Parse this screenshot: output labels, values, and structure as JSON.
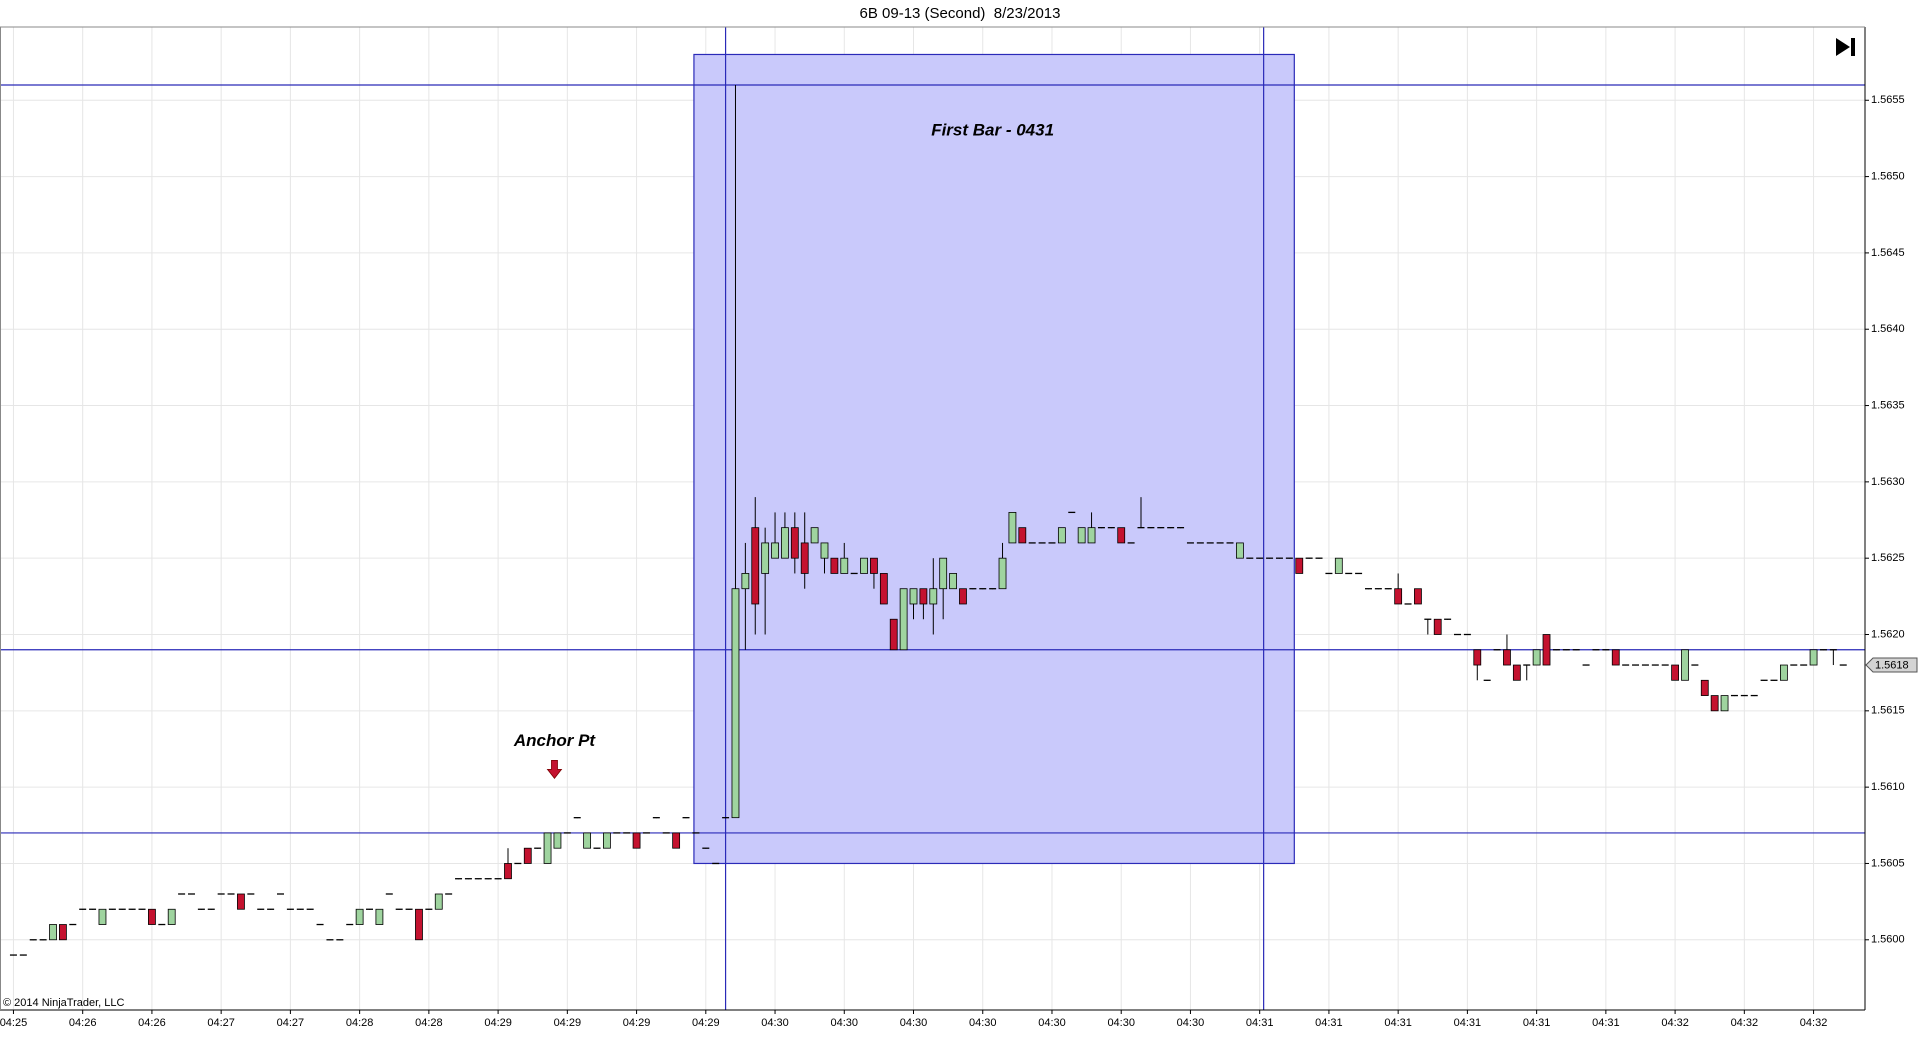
{
  "chart_data": {
    "type": "candlestick",
    "title": "6B 09-13 (Second)  8/23/2013",
    "copyright": "© 2014 NinjaTrader, LLC",
    "categories": [
      "04:25",
      null,
      null,
      null,
      null,
      null,
      null,
      "04:26",
      null,
      null,
      null,
      null,
      null,
      null,
      "04:26",
      null,
      null,
      null,
      null,
      null,
      null,
      "04:27",
      null,
      null,
      null,
      null,
      null,
      null,
      "04:27",
      null,
      null,
      null,
      null,
      null,
      null,
      "04:28",
      null,
      null,
      null,
      null,
      null,
      null,
      "04:28",
      null,
      null,
      null,
      null,
      null,
      null,
      "04:29",
      null,
      null,
      null,
      null,
      null,
      null,
      "04:29",
      null,
      null,
      null,
      null,
      null,
      null,
      "04:29",
      null,
      null,
      null,
      null,
      null,
      null,
      "04:29",
      null,
      null,
      null,
      null,
      null,
      null,
      "04:30",
      null,
      null,
      null,
      null,
      null,
      null,
      "04:30",
      null,
      null,
      null,
      null,
      null,
      null,
      "04:30",
      null,
      null,
      null,
      null,
      null,
      null,
      "04:30",
      null,
      null,
      null,
      null,
      null,
      null,
      "04:30",
      null,
      null,
      null,
      null,
      null,
      null,
      "04:30",
      null,
      null,
      null,
      null,
      null,
      null,
      "04:30",
      null,
      null,
      null,
      null,
      null,
      null,
      "04:31",
      null,
      null,
      null,
      null,
      null,
      null,
      "04:31",
      null,
      null,
      null,
      null,
      null,
      null,
      "04:31",
      null,
      null,
      null,
      null,
      null,
      null,
      "04:31",
      null,
      null,
      null,
      null,
      null,
      null,
      "04:31",
      null,
      null,
      null,
      null,
      null,
      null,
      "04:31",
      null,
      null,
      null,
      null,
      null,
      null,
      "04:32",
      null,
      null,
      null,
      null,
      null,
      null,
      "04:32",
      null,
      null,
      null,
      null,
      null,
      null,
      "04:32",
      null,
      null,
      null
    ],
    "open": [
      1.5599,
      1.5599,
      1.56,
      1.56,
      1.56,
      1.5601,
      1.5601,
      1.5602,
      1.5602,
      1.5601,
      1.5602,
      1.5602,
      1.5602,
      1.5602,
      1.5602,
      1.5601,
      1.5601,
      1.5603,
      1.5603,
      1.5602,
      1.5602,
      1.5603,
      1.5603,
      1.5603,
      1.5603,
      1.5602,
      1.5602,
      1.5603,
      1.5602,
      1.5602,
      1.5602,
      1.5601,
      1.56,
      1.56,
      1.5601,
      1.5601,
      1.5602,
      1.5601,
      1.5603,
      1.5602,
      1.5602,
      1.5602,
      1.5602,
      1.5602,
      1.5603,
      1.5604,
      1.5604,
      1.5604,
      1.5604,
      1.5604,
      1.5605,
      1.5605,
      1.5606,
      1.5606,
      1.5605,
      1.5606,
      1.5607,
      1.5608,
      1.5606,
      1.5606,
      1.5606,
      1.5607,
      1.5607,
      1.5607,
      1.5607,
      1.5608,
      1.5607,
      1.5607,
      1.5608,
      1.5607,
      1.5606,
      1.5605,
      1.5608,
      1.5608,
      1.5623,
      1.5627,
      1.5624,
      1.5625,
      1.5625,
      1.5627,
      1.5626,
      1.5626,
      1.5625,
      1.5625,
      1.5624,
      1.5624,
      1.5624,
      1.5625,
      1.5624,
      1.5621,
      1.5619,
      1.5622,
      1.5623,
      1.5622,
      1.5623,
      1.5623,
      1.5623,
      1.5623,
      1.5623,
      1.5623,
      1.5623,
      1.5626,
      1.5627,
      1.5626,
      1.5626,
      1.5626,
      1.5626,
      1.5628,
      1.5626,
      1.5626,
      1.5627,
      1.5627,
      1.5627,
      1.5626,
      1.5627,
      1.5627,
      1.5627,
      1.5627,
      1.5627,
      1.5626,
      1.5626,
      1.5626,
      1.5626,
      1.5626,
      1.5625,
      1.5625,
      1.5625,
      1.5625,
      1.5625,
      1.5625,
      1.5625,
      1.5625,
      1.5625,
      1.5624,
      1.5624,
      1.5624,
      1.5624,
      1.5623,
      1.5623,
      1.5623,
      1.5623,
      1.5622,
      1.5623,
      1.5621,
      1.5621,
      1.5621,
      1.562,
      1.562,
      1.5619,
      1.5617,
      1.5619,
      1.5619,
      1.5618,
      1.5618,
      1.5618,
      1.562,
      1.5619,
      1.5619,
      1.5619,
      1.5618,
      1.5619,
      1.5619,
      1.5619,
      1.5618,
      1.5618,
      1.5618,
      1.5618,
      1.5618,
      1.5618,
      1.5617,
      1.5618,
      1.5617,
      1.5616,
      1.5615,
      1.5616,
      1.5616,
      1.5616,
      1.5617,
      1.5617,
      1.5617,
      1.5618,
      1.5618,
      1.5618,
      1.5619,
      1.5619,
      1.5618
    ],
    "high": [
      1.5599,
      1.5599,
      1.56,
      1.56,
      1.5601,
      1.5601,
      1.5601,
      1.5602,
      1.5602,
      1.5602,
      1.5602,
      1.5602,
      1.5602,
      1.5602,
      1.5602,
      1.5601,
      1.5602,
      1.5603,
      1.5603,
      1.5602,
      1.5602,
      1.5603,
      1.5603,
      1.5603,
      1.5603,
      1.5602,
      1.5602,
      1.5603,
      1.5602,
      1.5602,
      1.5602,
      1.5601,
      1.56,
      1.56,
      1.5601,
      1.5602,
      1.5602,
      1.5602,
      1.5603,
      1.5602,
      1.5602,
      1.5602,
      1.5602,
      1.5603,
      1.5603,
      1.5604,
      1.5604,
      1.5604,
      1.5604,
      1.5604,
      1.5606,
      1.5605,
      1.5606,
      1.5606,
      1.5607,
      1.5607,
      1.5607,
      1.5608,
      1.5607,
      1.5606,
      1.5607,
      1.5607,
      1.5607,
      1.5607,
      1.5607,
      1.5608,
      1.5607,
      1.5607,
      1.5608,
      1.5607,
      1.5606,
      1.5605,
      1.5608,
      1.5656,
      1.5626,
      1.5629,
      1.5627,
      1.5628,
      1.5628,
      1.5628,
      1.5628,
      1.5627,
      1.5626,
      1.5625,
      1.5626,
      1.5624,
      1.5625,
      1.5625,
      1.5624,
      1.5621,
      1.5623,
      1.5623,
      1.5623,
      1.5625,
      1.5625,
      1.5624,
      1.5623,
      1.5623,
      1.5623,
      1.5623,
      1.5626,
      1.5628,
      1.5627,
      1.5626,
      1.5626,
      1.5626,
      1.5627,
      1.5628,
      1.5627,
      1.5628,
      1.5627,
      1.5627,
      1.5627,
      1.5626,
      1.5629,
      1.5627,
      1.5627,
      1.5627,
      1.5627,
      1.5626,
      1.5626,
      1.5626,
      1.5626,
      1.5626,
      1.5626,
      1.5625,
      1.5625,
      1.5625,
      1.5625,
      1.5625,
      1.5625,
      1.5625,
      1.5625,
      1.5624,
      1.5625,
      1.5624,
      1.5624,
      1.5623,
      1.5623,
      1.5623,
      1.5624,
      1.5622,
      1.5623,
      1.5621,
      1.5621,
      1.5621,
      1.562,
      1.562,
      1.5619,
      1.5617,
      1.5619,
      1.562,
      1.5618,
      1.5618,
      1.5619,
      1.562,
      1.5619,
      1.5619,
      1.5619,
      1.5618,
      1.5619,
      1.5619,
      1.5619,
      1.5618,
      1.5618,
      1.5618,
      1.5618,
      1.5618,
      1.5618,
      1.5619,
      1.5618,
      1.5617,
      1.5616,
      1.5616,
      1.5616,
      1.5616,
      1.5616,
      1.5617,
      1.5617,
      1.5618,
      1.5618,
      1.5618,
      1.5619,
      1.5619,
      1.5619,
      1.5618
    ],
    "low": [
      1.5599,
      1.5599,
      1.56,
      1.56,
      1.56,
      1.56,
      1.5601,
      1.5602,
      1.5602,
      1.5601,
      1.5602,
      1.5602,
      1.5602,
      1.5602,
      1.5601,
      1.5601,
      1.5601,
      1.5603,
      1.5603,
      1.5602,
      1.5602,
      1.5603,
      1.5603,
      1.5602,
      1.5603,
      1.5602,
      1.5602,
      1.5603,
      1.5602,
      1.5602,
      1.5602,
      1.5601,
      1.56,
      1.56,
      1.5601,
      1.5601,
      1.5602,
      1.5601,
      1.5603,
      1.5602,
      1.5602,
      1.56,
      1.5602,
      1.5602,
      1.5603,
      1.5604,
      1.5604,
      1.5604,
      1.5604,
      1.5604,
      1.5604,
      1.5605,
      1.5605,
      1.5606,
      1.5605,
      1.5606,
      1.5607,
      1.5608,
      1.5606,
      1.5606,
      1.5606,
      1.5607,
      1.5607,
      1.5606,
      1.5607,
      1.5608,
      1.5607,
      1.5606,
      1.5608,
      1.5607,
      1.5606,
      1.5605,
      1.5608,
      1.5608,
      1.5619,
      1.562,
      1.562,
      1.5625,
      1.5625,
      1.5624,
      1.5623,
      1.5626,
      1.5624,
      1.5624,
      1.5624,
      1.5624,
      1.5624,
      1.5623,
      1.5622,
      1.5619,
      1.5619,
      1.5621,
      1.5621,
      1.562,
      1.5621,
      1.5623,
      1.5622,
      1.5623,
      1.5623,
      1.5623,
      1.5623,
      1.5626,
      1.5626,
      1.5626,
      1.5626,
      1.5626,
      1.5626,
      1.5628,
      1.5626,
      1.5626,
      1.5627,
      1.5627,
      1.5626,
      1.5626,
      1.5627,
      1.5627,
      1.5627,
      1.5627,
      1.5627,
      1.5626,
      1.5626,
      1.5626,
      1.5626,
      1.5626,
      1.5625,
      1.5625,
      1.5625,
      1.5625,
      1.5625,
      1.5625,
      1.5624,
      1.5625,
      1.5625,
      1.5624,
      1.5624,
      1.5624,
      1.5624,
      1.5623,
      1.5623,
      1.5623,
      1.5622,
      1.5622,
      1.5622,
      1.562,
      1.562,
      1.5621,
      1.562,
      1.562,
      1.5617,
      1.5617,
      1.5619,
      1.5618,
      1.5617,
      1.5617,
      1.5618,
      1.5618,
      1.5619,
      1.5619,
      1.5619,
      1.5618,
      1.5619,
      1.5619,
      1.5618,
      1.5618,
      1.5618,
      1.5618,
      1.5618,
      1.5618,
      1.5617,
      1.5617,
      1.5618,
      1.5616,
      1.5615,
      1.5615,
      1.5616,
      1.5616,
      1.5616,
      1.5617,
      1.5617,
      1.5617,
      1.5618,
      1.5618,
      1.5618,
      1.5619,
      1.5618,
      1.5618
    ],
    "close": [
      1.5599,
      1.5599,
      1.56,
      1.56,
      1.5601,
      1.56,
      1.5601,
      1.5602,
      1.5602,
      1.5602,
      1.5602,
      1.5602,
      1.5602,
      1.5602,
      1.5601,
      1.5601,
      1.5602,
      1.5603,
      1.5603,
      1.5602,
      1.5602,
      1.5603,
      1.5603,
      1.5602,
      1.5603,
      1.5602,
      1.5602,
      1.5603,
      1.5602,
      1.5602,
      1.5602,
      1.5601,
      1.56,
      1.56,
      1.5601,
      1.5602,
      1.5602,
      1.5602,
      1.5603,
      1.5602,
      1.5602,
      1.56,
      1.5602,
      1.5603,
      1.5603,
      1.5604,
      1.5604,
      1.5604,
      1.5604,
      1.5604,
      1.5604,
      1.5605,
      1.5605,
      1.5606,
      1.5607,
      1.5607,
      1.5607,
      1.5608,
      1.5607,
      1.5606,
      1.5607,
      1.5607,
      1.5607,
      1.5606,
      1.5607,
      1.5608,
      1.5607,
      1.5606,
      1.5608,
      1.5607,
      1.5606,
      1.5605,
      1.5608,
      1.5623,
      1.5624,
      1.5622,
      1.5626,
      1.5626,
      1.5627,
      1.5625,
      1.5624,
      1.5627,
      1.5626,
      1.5624,
      1.5625,
      1.5624,
      1.5625,
      1.5624,
      1.5622,
      1.5619,
      1.5623,
      1.5623,
      1.5622,
      1.5623,
      1.5625,
      1.5624,
      1.5622,
      1.5623,
      1.5623,
      1.5623,
      1.5625,
      1.5628,
      1.5626,
      1.5626,
      1.5626,
      1.5626,
      1.5627,
      1.5628,
      1.5627,
      1.5627,
      1.5627,
      1.5627,
      1.5626,
      1.5626,
      1.5627,
      1.5627,
      1.5627,
      1.5627,
      1.5627,
      1.5626,
      1.5626,
      1.5626,
      1.5626,
      1.5626,
      1.5626,
      1.5625,
      1.5625,
      1.5625,
      1.5625,
      1.5625,
      1.5624,
      1.5625,
      1.5625,
      1.5624,
      1.5625,
      1.5624,
      1.5624,
      1.5623,
      1.5623,
      1.5623,
      1.5622,
      1.5622,
      1.5622,
      1.5621,
      1.562,
      1.5621,
      1.562,
      1.562,
      1.5618,
      1.5617,
      1.5619,
      1.5618,
      1.5617,
      1.5618,
      1.5619,
      1.5618,
      1.5619,
      1.5619,
      1.5619,
      1.5618,
      1.5619,
      1.5619,
      1.5618,
      1.5618,
      1.5618,
      1.5618,
      1.5618,
      1.5618,
      1.5617,
      1.5619,
      1.5618,
      1.5616,
      1.5615,
      1.5616,
      1.5616,
      1.5616,
      1.5616,
      1.5617,
      1.5617,
      1.5618,
      1.5618,
      1.5618,
      1.5619,
      1.5619,
      1.5619,
      1.5618
    ],
    "up_color": "#9fd49f",
    "down_color": "#c4122f",
    "flat_color": "#000000",
    "xlim": [
      -1.36,
      187.2
    ],
    "ylim": [
      1.55954,
      1.56598
    ],
    "yticks": [
      {
        "value": 1.56,
        "label": "1.5600"
      },
      1.5605,
      {
        "value": 1.561,
        "label": "1.5610"
      },
      1.5615,
      {
        "value": 1.562,
        "label": "1.5620"
      },
      1.5625,
      {
        "value": 1.563,
        "label": "1.5630"
      },
      1.5635,
      {
        "value": 1.564,
        "label": "1.5640"
      },
      1.5645,
      {
        "value": 1.565,
        "label": "1.5650"
      },
      1.5655
    ],
    "grid": true,
    "last_price": 1.5618,
    "line_color": "#2a2ab8",
    "hlines": [
      1.5656,
      1.5619,
      1.5607
    ],
    "vlines": [
      72,
      126.4
    ],
    "rectangle": {
      "x": [
        68.8,
        129.5
      ],
      "y": [
        1.5658,
        1.5605
      ],
      "color": "#c9c9fb"
    },
    "annotations": [
      {
        "text": "First Bar - 0431",
        "x": 99,
        "y": 1.5653
      },
      {
        "text": "Anchor Pt",
        "x": 54.7,
        "y": 1.5613
      }
    ]
  }
}
